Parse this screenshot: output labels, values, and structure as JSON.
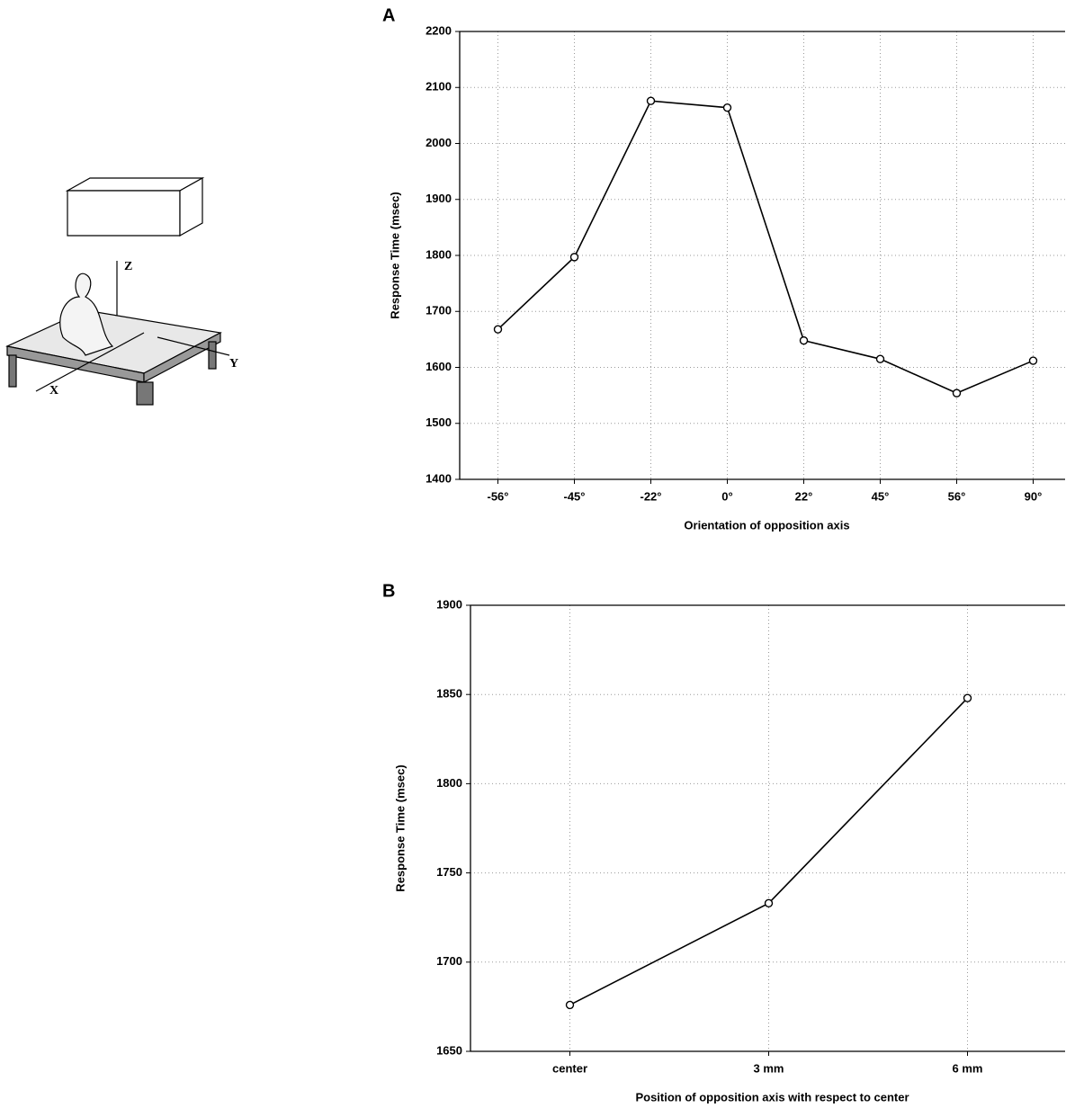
{
  "illustration": {
    "labels": [
      "Z",
      "Y",
      "X"
    ]
  },
  "chart_data": [
    {
      "type": "line",
      "panel_label": "A",
      "x_label": "Orientation of opposition axis",
      "y_label": "Response Time (msec)",
      "categories": [
        "-56°",
        "-45°",
        "-22°",
        "0°",
        "22°",
        "45°",
        "56°",
        "90°"
      ],
      "values": [
        1668,
        1797,
        2076,
        2064,
        1648,
        1615,
        1554,
        1612
      ],
      "color": "#000000",
      "ylim": [
        1400,
        2200
      ],
      "yticks": [
        1400,
        1500,
        1600,
        1700,
        1800,
        1900,
        2000,
        2100,
        2200
      ],
      "grid": true
    },
    {
      "type": "line",
      "panel_label": "B",
      "x_label": "Position of opposition axis with respect to center",
      "y_label": "Response Time (msec)",
      "categories": [
        "center",
        "3 mm",
        "6 mm"
      ],
      "values": [
        1676,
        1733,
        1848
      ],
      "color": "#000000",
      "ylim": [
        1650,
        1900
      ],
      "yticks": [
        1650,
        1700,
        1750,
        1800,
        1850,
        1900
      ],
      "grid": true
    }
  ]
}
